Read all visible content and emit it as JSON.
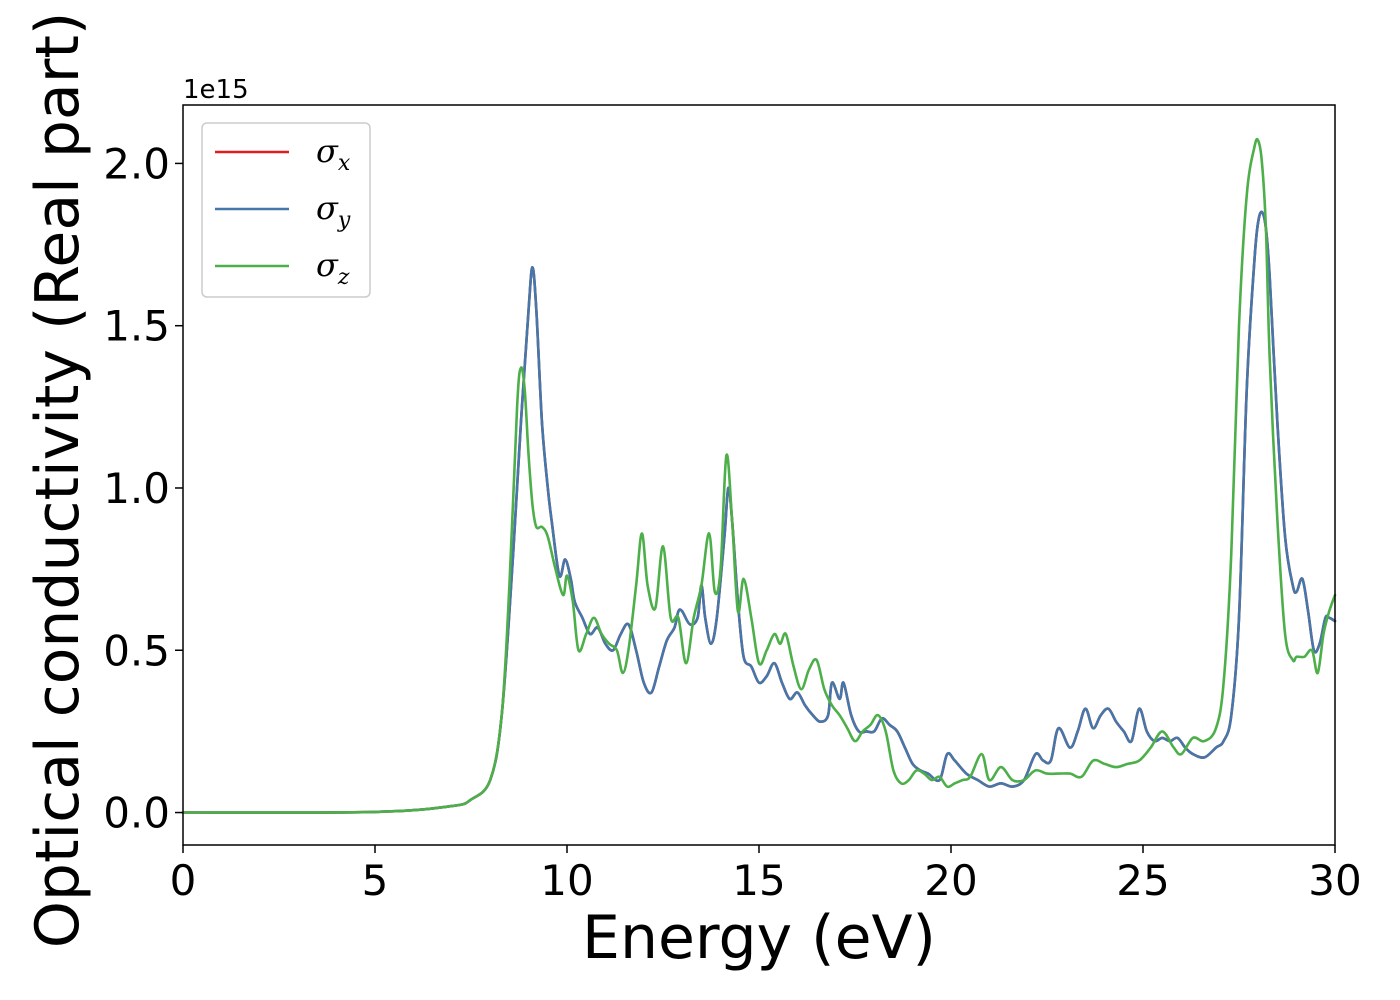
{
  "chart_data": {
    "type": "line",
    "xlabel": "Energy (eV)",
    "ylabel": "Optical conductivity (Real part)",
    "y_offset_label": "1e15",
    "xlim": [
      0,
      30
    ],
    "ylim": [
      -0.1,
      2.18
    ],
    "xticks": [
      0,
      5,
      10,
      15,
      20,
      25,
      30
    ],
    "xtick_labels": [
      "0",
      "5",
      "10",
      "15",
      "20",
      "25",
      "30"
    ],
    "yticks": [
      0.0,
      0.5,
      1.0,
      1.5,
      2.0
    ],
    "ytick_labels": [
      "0.0",
      "0.5",
      "1.0",
      "1.5",
      "2.0"
    ],
    "grid": false,
    "legend_position": "top-left",
    "series": [
      {
        "name": "σx",
        "symbol": "σ",
        "subscript": "x",
        "color": "#e41a1c",
        "x": [
          0,
          5,
          7,
          7.5,
          8,
          8.3,
          8.6,
          8.8,
          9.0,
          9.1,
          9.2,
          9.35,
          9.5,
          9.6,
          9.8,
          9.95,
          10.1,
          10.2,
          10.4,
          10.6,
          10.8,
          11.0,
          11.2,
          11.4,
          11.6,
          11.8,
          12.0,
          12.2,
          12.4,
          12.6,
          12.8,
          12.9,
          13.0,
          13.2,
          13.4,
          13.5,
          13.6,
          13.75,
          13.9,
          14.1,
          14.2,
          14.3,
          14.45,
          14.6,
          14.8,
          15.0,
          15.2,
          15.4,
          15.6,
          15.8,
          16.0,
          16.2,
          16.4,
          16.6,
          16.8,
          16.9,
          17.1,
          17.2,
          17.4,
          17.6,
          17.8,
          18.0,
          18.2,
          18.4,
          18.6,
          18.8,
          19.0,
          19.2,
          19.4,
          19.7,
          19.9,
          20.1,
          20.4,
          20.7,
          21.0,
          21.3,
          21.6,
          21.9,
          22.2,
          22.4,
          22.6,
          22.8,
          23.1,
          23.3,
          23.5,
          23.7,
          23.9,
          24.1,
          24.3,
          24.5,
          24.7,
          24.9,
          25.1,
          25.3,
          25.5,
          25.7,
          25.9,
          26.1,
          26.3,
          26.6,
          26.9,
          27.1,
          27.3,
          27.5,
          27.7,
          27.9,
          28.0,
          28.1,
          28.2,
          28.3,
          28.5,
          28.7,
          28.9,
          29.0,
          29.15,
          29.3,
          29.45,
          29.6,
          29.75,
          29.85,
          30.0
        ],
        "y": [
          0,
          0.002,
          0.02,
          0.04,
          0.1,
          0.3,
          0.8,
          1.2,
          1.55,
          1.68,
          1.55,
          1.2,
          1.0,
          0.9,
          0.73,
          0.78,
          0.72,
          0.65,
          0.6,
          0.55,
          0.57,
          0.52,
          0.5,
          0.55,
          0.58,
          0.5,
          0.4,
          0.37,
          0.45,
          0.53,
          0.57,
          0.62,
          0.62,
          0.58,
          0.6,
          0.7,
          0.6,
          0.52,
          0.6,
          0.85,
          1.0,
          0.9,
          0.65,
          0.48,
          0.45,
          0.4,
          0.42,
          0.46,
          0.4,
          0.35,
          0.37,
          0.33,
          0.3,
          0.28,
          0.3,
          0.4,
          0.35,
          0.4,
          0.3,
          0.25,
          0.25,
          0.25,
          0.29,
          0.27,
          0.25,
          0.2,
          0.15,
          0.13,
          0.12,
          0.1,
          0.18,
          0.16,
          0.12,
          0.1,
          0.08,
          0.09,
          0.08,
          0.1,
          0.18,
          0.16,
          0.16,
          0.26,
          0.2,
          0.25,
          0.32,
          0.26,
          0.3,
          0.32,
          0.28,
          0.25,
          0.22,
          0.32,
          0.25,
          0.22,
          0.23,
          0.22,
          0.23,
          0.2,
          0.18,
          0.17,
          0.2,
          0.22,
          0.3,
          0.6,
          1.3,
          1.7,
          1.82,
          1.85,
          1.8,
          1.65,
          1.2,
          0.85,
          0.7,
          0.68,
          0.72,
          0.62,
          0.5,
          0.52,
          0.6,
          0.6,
          0.59
        ]
      },
      {
        "name": "σy",
        "symbol": "σ",
        "subscript": "y",
        "color": "#4477aa",
        "x": [
          0,
          5,
          7,
          7.5,
          8,
          8.3,
          8.6,
          8.8,
          9.0,
          9.1,
          9.2,
          9.35,
          9.5,
          9.6,
          9.8,
          9.95,
          10.1,
          10.2,
          10.4,
          10.6,
          10.8,
          11.0,
          11.2,
          11.4,
          11.6,
          11.8,
          12.0,
          12.2,
          12.4,
          12.6,
          12.8,
          12.9,
          13.0,
          13.2,
          13.4,
          13.5,
          13.6,
          13.75,
          13.9,
          14.1,
          14.2,
          14.3,
          14.45,
          14.6,
          14.8,
          15.0,
          15.2,
          15.4,
          15.6,
          15.8,
          16.0,
          16.2,
          16.4,
          16.6,
          16.8,
          16.9,
          17.1,
          17.2,
          17.4,
          17.6,
          17.8,
          18.0,
          18.2,
          18.4,
          18.6,
          18.8,
          19.0,
          19.2,
          19.4,
          19.7,
          19.9,
          20.1,
          20.4,
          20.7,
          21.0,
          21.3,
          21.6,
          21.9,
          22.2,
          22.4,
          22.6,
          22.8,
          23.1,
          23.3,
          23.5,
          23.7,
          23.9,
          24.1,
          24.3,
          24.5,
          24.7,
          24.9,
          25.1,
          25.3,
          25.5,
          25.7,
          25.9,
          26.1,
          26.3,
          26.6,
          26.9,
          27.1,
          27.3,
          27.5,
          27.7,
          27.9,
          28.0,
          28.1,
          28.2,
          28.3,
          28.5,
          28.7,
          28.9,
          29.0,
          29.15,
          29.3,
          29.45,
          29.6,
          29.75,
          29.85,
          30.0
        ],
        "y": [
          0,
          0.002,
          0.02,
          0.04,
          0.1,
          0.3,
          0.8,
          1.2,
          1.55,
          1.68,
          1.55,
          1.2,
          1.0,
          0.9,
          0.73,
          0.78,
          0.72,
          0.65,
          0.6,
          0.55,
          0.57,
          0.52,
          0.5,
          0.55,
          0.58,
          0.5,
          0.4,
          0.37,
          0.45,
          0.53,
          0.57,
          0.62,
          0.62,
          0.58,
          0.6,
          0.7,
          0.6,
          0.52,
          0.6,
          0.85,
          1.0,
          0.9,
          0.65,
          0.48,
          0.45,
          0.4,
          0.42,
          0.46,
          0.4,
          0.35,
          0.37,
          0.33,
          0.3,
          0.28,
          0.3,
          0.4,
          0.35,
          0.4,
          0.3,
          0.25,
          0.25,
          0.25,
          0.29,
          0.27,
          0.25,
          0.2,
          0.15,
          0.13,
          0.12,
          0.1,
          0.18,
          0.16,
          0.12,
          0.1,
          0.08,
          0.09,
          0.08,
          0.1,
          0.18,
          0.16,
          0.16,
          0.26,
          0.2,
          0.25,
          0.32,
          0.26,
          0.3,
          0.32,
          0.28,
          0.25,
          0.22,
          0.32,
          0.25,
          0.22,
          0.23,
          0.22,
          0.23,
          0.2,
          0.18,
          0.17,
          0.2,
          0.22,
          0.3,
          0.6,
          1.3,
          1.7,
          1.82,
          1.85,
          1.8,
          1.65,
          1.2,
          0.85,
          0.7,
          0.68,
          0.72,
          0.62,
          0.5,
          0.52,
          0.6,
          0.6,
          0.59
        ]
      },
      {
        "name": "σz",
        "symbol": "σ",
        "subscript": "z",
        "color": "#4daf4a",
        "x": [
          0,
          5,
          7,
          7.5,
          8,
          8.3,
          8.5,
          8.7,
          8.8,
          8.9,
          9.0,
          9.1,
          9.2,
          9.35,
          9.5,
          9.7,
          9.9,
          10.0,
          10.15,
          10.3,
          10.5,
          10.7,
          10.9,
          11.1,
          11.3,
          11.45,
          11.6,
          11.8,
          11.95,
          12.1,
          12.3,
          12.5,
          12.7,
          12.9,
          13.1,
          13.3,
          13.5,
          13.7,
          13.85,
          14.0,
          14.15,
          14.3,
          14.45,
          14.6,
          14.8,
          15.0,
          15.2,
          15.4,
          15.55,
          15.7,
          15.9,
          16.1,
          16.3,
          16.5,
          16.7,
          16.9,
          17.1,
          17.3,
          17.5,
          17.7,
          17.9,
          18.1,
          18.3,
          18.5,
          18.7,
          18.9,
          19.1,
          19.3,
          19.5,
          19.7,
          19.9,
          20.1,
          20.3,
          20.5,
          20.8,
          21.0,
          21.3,
          21.6,
          21.9,
          22.2,
          22.5,
          22.8,
          23.1,
          23.4,
          23.7,
          24.0,
          24.3,
          24.6,
          24.9,
          25.2,
          25.5,
          25.8,
          26.0,
          26.3,
          26.6,
          26.9,
          27.1,
          27.3,
          27.5,
          27.7,
          27.9,
          28.0,
          28.1,
          28.2,
          28.3,
          28.5,
          28.7,
          28.9,
          29.0,
          29.2,
          29.4,
          29.55,
          29.7,
          29.85,
          30.0
        ],
        "y": [
          0,
          0.002,
          0.02,
          0.04,
          0.1,
          0.3,
          0.7,
          1.25,
          1.37,
          1.3,
          1.1,
          0.95,
          0.88,
          0.88,
          0.85,
          0.75,
          0.67,
          0.73,
          0.65,
          0.5,
          0.55,
          0.6,
          0.55,
          0.52,
          0.5,
          0.43,
          0.5,
          0.7,
          0.86,
          0.7,
          0.63,
          0.82,
          0.6,
          0.6,
          0.46,
          0.6,
          0.7,
          0.86,
          0.68,
          0.75,
          1.1,
          0.9,
          0.62,
          0.72,
          0.6,
          0.46,
          0.5,
          0.55,
          0.52,
          0.55,
          0.45,
          0.38,
          0.44,
          0.47,
          0.38,
          0.33,
          0.3,
          0.26,
          0.22,
          0.25,
          0.27,
          0.3,
          0.25,
          0.13,
          0.09,
          0.1,
          0.13,
          0.12,
          0.1,
          0.11,
          0.08,
          0.09,
          0.1,
          0.11,
          0.18,
          0.1,
          0.14,
          0.1,
          0.1,
          0.13,
          0.12,
          0.12,
          0.12,
          0.11,
          0.16,
          0.15,
          0.14,
          0.15,
          0.16,
          0.2,
          0.25,
          0.2,
          0.18,
          0.23,
          0.22,
          0.26,
          0.4,
          0.8,
          1.5,
          1.9,
          2.05,
          2.07,
          2.0,
          1.8,
          1.4,
          0.9,
          0.55,
          0.47,
          0.48,
          0.48,
          0.5,
          0.43,
          0.55,
          0.62,
          0.67
        ]
      }
    ]
  }
}
